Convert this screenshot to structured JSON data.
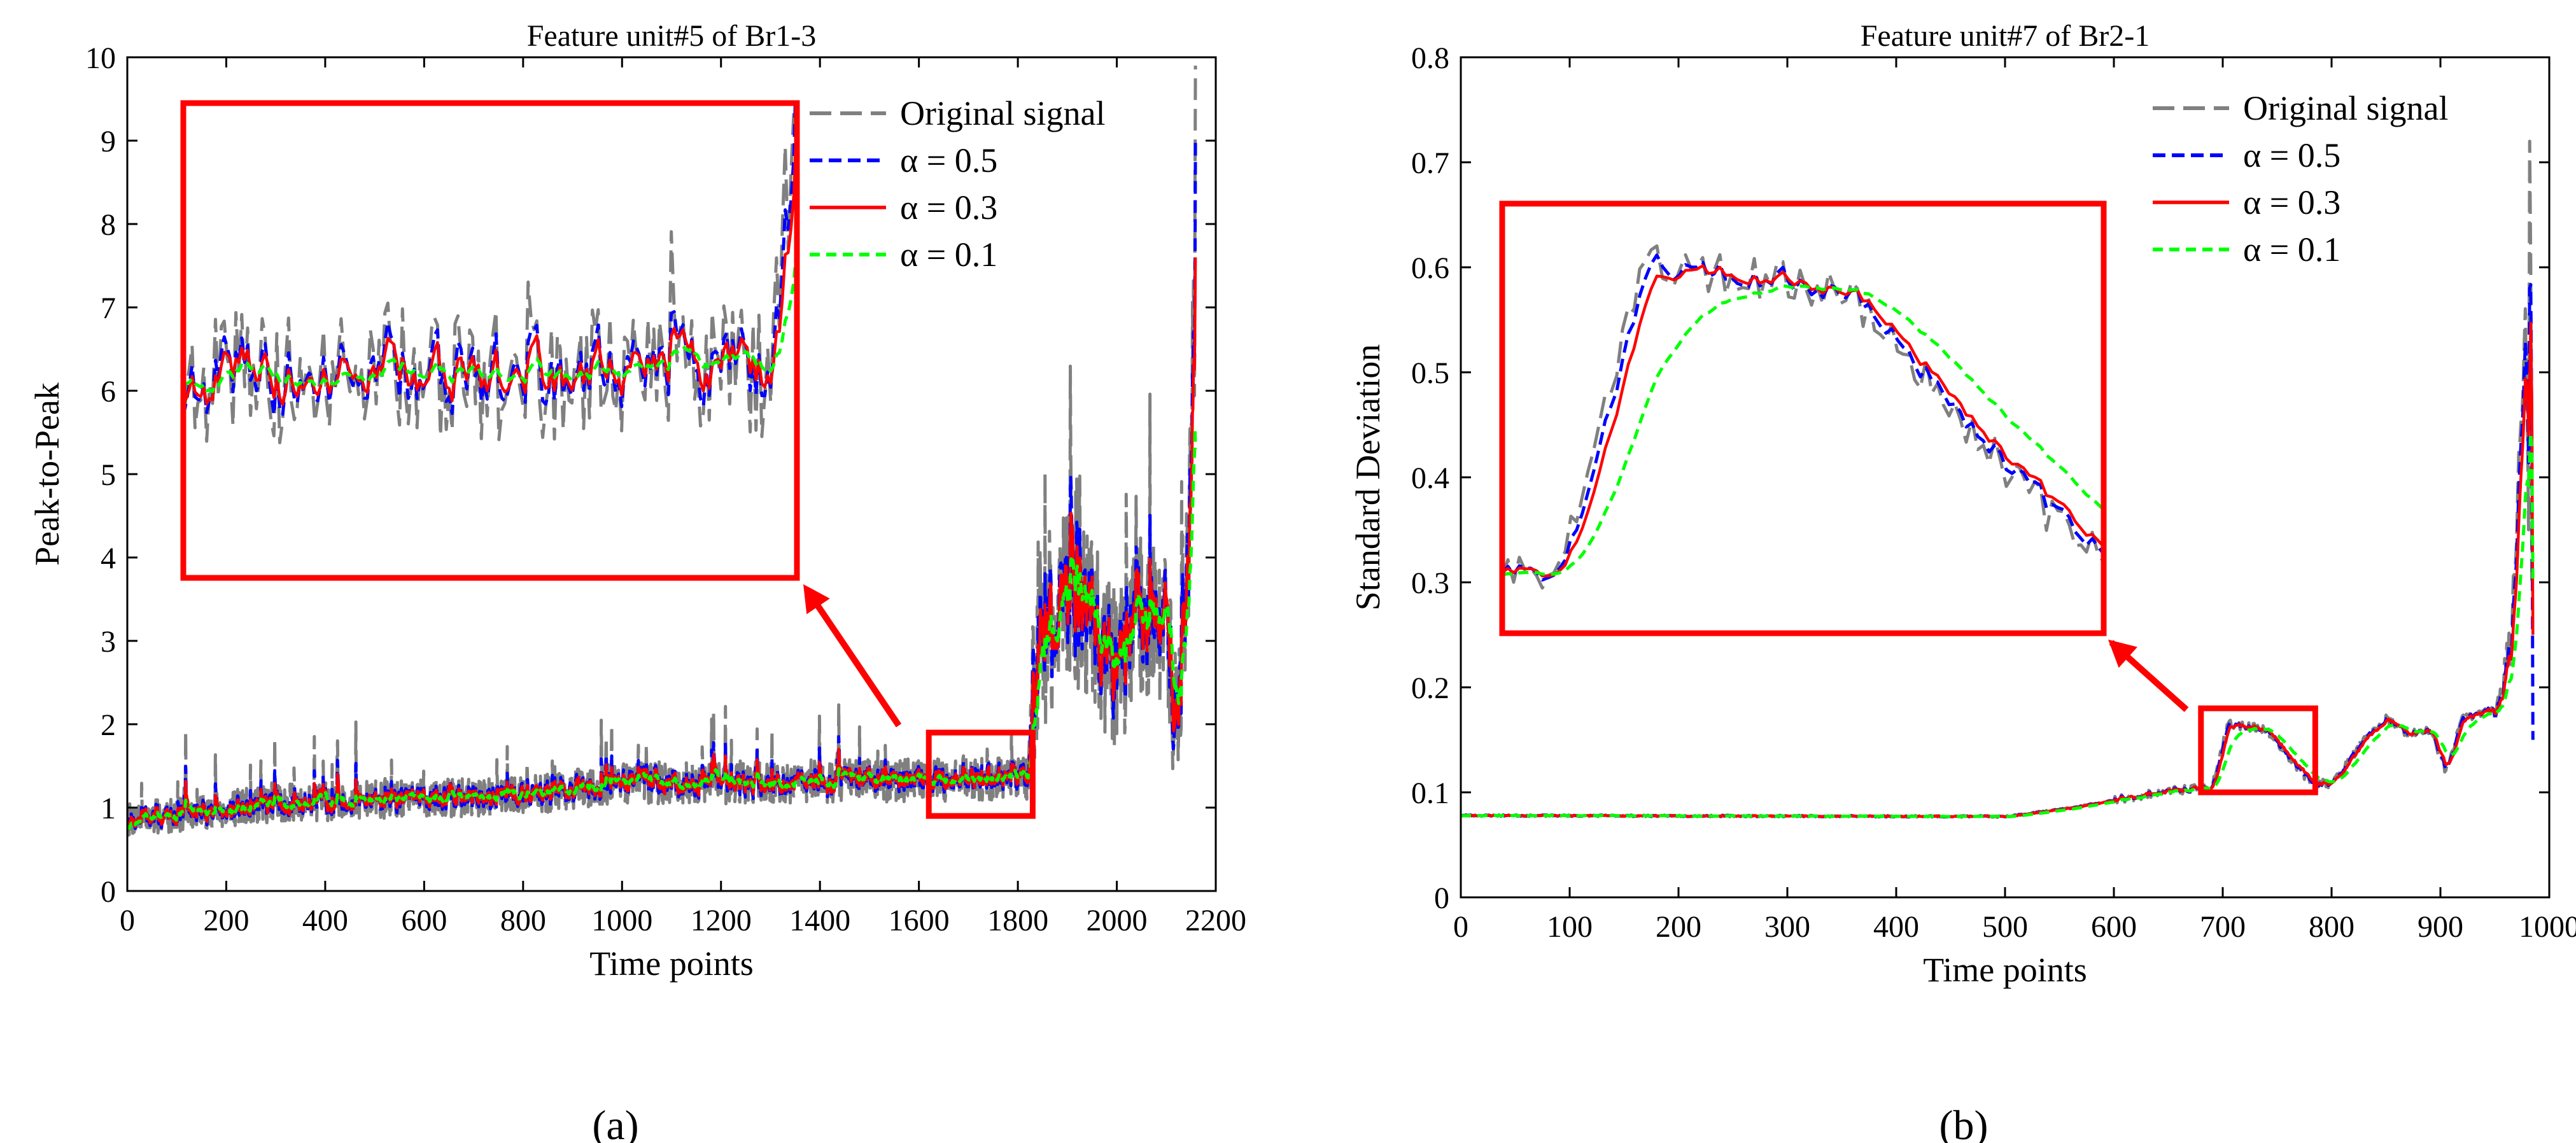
{
  "figure": {
    "panels": [
      "(a)",
      "(b)"
    ]
  },
  "colors": {
    "original": "#808080",
    "a05": "#0000ff",
    "a03": "#ff0000",
    "a01": "#00ff00",
    "frame": "#ff0000"
  },
  "chart_data": [
    {
      "type": "line",
      "panel": "(a)",
      "title": "Feature unit#5 of Br1-3",
      "xlabel": "Time points",
      "ylabel": "Peak-to-Peak",
      "xlim": [
        0,
        2200
      ],
      "ylim": [
        0,
        10
      ],
      "xticks": [
        0,
        200,
        400,
        600,
        800,
        1000,
        1200,
        1400,
        1600,
        1800,
        2000,
        2200
      ],
      "yticks": [
        0,
        1,
        2,
        3,
        4,
        5,
        6,
        7,
        8,
        9,
        10
      ],
      "legend": [
        "Original signal",
        "α = 0.5",
        "α = 0.3",
        "α = 0.1"
      ],
      "legend_position": "top-right",
      "annotation": "zoom inset of region x 1620-1830, y 0.9-1.9",
      "zoom_region": {
        "x": [
          1620,
          1830
        ],
        "y": [
          0.9,
          1.9
        ]
      },
      "series_shape": {
        "n_points": 2160,
        "baseline": [
          [
            0,
            0.85
          ],
          [
            150,
            0.95
          ],
          [
            300,
            1.05
          ],
          [
            800,
            1.15
          ],
          [
            1000,
            1.3
          ],
          [
            1200,
            1.3
          ],
          [
            1820,
            1.35
          ],
          [
            1830,
            2.5
          ],
          [
            1900,
            3.6
          ],
          [
            1950,
            3.2
          ],
          [
            2000,
            2.6
          ],
          [
            2050,
            3.4
          ],
          [
            2100,
            3.0
          ],
          [
            2120,
            1.9
          ],
          [
            2145,
            4.0
          ],
          [
            2160,
            7.5
          ]
        ],
        "original_peak_end": 9.9,
        "alpha_05_peak_end": 9.0,
        "alpha_03_peak_end": 7.6,
        "alpha_01_peak_end": 5.3
      }
    },
    {
      "type": "line",
      "panel": "(b)",
      "title": "Feature unit#7 of Br2-1",
      "xlabel": "Time points",
      "ylabel": "Standard Deviation",
      "xlim": [
        0,
        1000
      ],
      "ylim": [
        0,
        0.8
      ],
      "xticks": [
        0,
        100,
        200,
        300,
        400,
        500,
        600,
        700,
        800,
        900,
        1000
      ],
      "yticks": [
        0,
        0.1,
        0.2,
        0.3,
        0.4,
        0.5,
        0.6,
        0.7,
        0.8
      ],
      "legend": [
        "Original signal",
        "α = 0.5",
        "α = 0.3",
        "α = 0.1"
      ],
      "legend_position": "top-right",
      "annotation": "zoom inset of region x 680-785, y 0.1-0.18",
      "zoom_region": {
        "x": [
          680,
          785
        ],
        "y": [
          0.1,
          0.18
        ]
      },
      "series_shape": {
        "baseline": [
          [
            0,
            0.078
          ],
          [
            500,
            0.077
          ],
          [
            560,
            0.085
          ],
          [
            640,
            0.1
          ],
          [
            690,
            0.105
          ],
          [
            705,
            0.165
          ],
          [
            740,
            0.16
          ],
          [
            780,
            0.11
          ],
          [
            800,
            0.108
          ],
          [
            830,
            0.15
          ],
          [
            850,
            0.17
          ],
          [
            870,
            0.155
          ],
          [
            890,
            0.16
          ],
          [
            905,
            0.12
          ],
          [
            920,
            0.17
          ],
          [
            950,
            0.18
          ],
          [
            965,
            0.24
          ],
          [
            978,
            0.55
          ],
          [
            985,
            0.15
          ]
        ],
        "original_peak_end": 0.72,
        "alpha_05_peak_end": 0.58,
        "alpha_03_peak_end": 0.49,
        "alpha_01_peak_end": 0.42
      }
    }
  ]
}
